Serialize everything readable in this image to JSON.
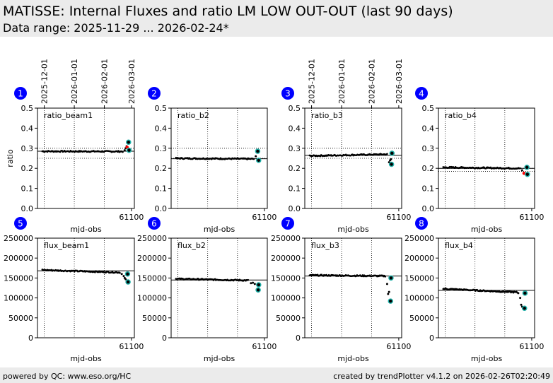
{
  "header": {
    "title": "MATISSE: Internal Fluxes and ratio LM LOW OUT-OUT (last 90 days)",
    "subtitle": "Data range: 2025-11-29 ... 2026-02-24*"
  },
  "footer": {
    "left": "powered by QC: www.eso.org/HC",
    "right": "created by trendPlotter v4.1.2 on 2026-02-26T02:20:49"
  },
  "colors": {
    "badge": "#0000ff",
    "point": "#000000",
    "highlight": "#ff0000",
    "latest_ring": "#20b2aa",
    "header_bg": "#ebebeb"
  },
  "chart_data": [
    {
      "type": "scatter",
      "panel": 1,
      "label": "ratio_beam1",
      "xlabel": "mjd-obs",
      "ylabel": "ratio",
      "xlim": [
        61003,
        61103
      ],
      "ylim": [
        0,
        0.5
      ],
      "xticks": [
        61100
      ],
      "yticks": [
        0.0,
        0.1,
        0.2,
        0.3,
        0.4,
        0.5
      ],
      "ytick_labels": [
        "0.0",
        "0.1",
        "0.2",
        "0.3",
        "0.4",
        "0.5"
      ],
      "date_ticks": [
        {
          "x": 61010,
          "label": "2025-12-01"
        },
        {
          "x": 61041,
          "label": "2026-01-01"
        },
        {
          "x": 61072,
          "label": "2026-02-01"
        },
        {
          "x": 61100,
          "label": "2026-03-01"
        }
      ],
      "vlines": [
        61010,
        61041,
        61072
      ],
      "ref_lines": [
        0.3,
        0.25
      ],
      "mean": 0.285,
      "series_start": 61008,
      "series_end": 61091,
      "base_start": 0.285,
      "base_end": 0.284,
      "points_extra": [
        [
          61093,
          0.29
        ],
        [
          61094,
          0.3
        ],
        [
          61095,
          0.31
        ]
      ],
      "red": [
        [
          61095.5,
          0.305
        ]
      ],
      "latest": [
        [
          61097,
          0.33
        ],
        [
          61097.5,
          0.29
        ]
      ]
    },
    {
      "type": "scatter",
      "panel": 2,
      "label": "ratio_b2",
      "xlabel": "mjd-obs",
      "ylabel": "",
      "xlim": [
        61003,
        61103
      ],
      "ylim": [
        0,
        0.5
      ],
      "xticks": [
        61100
      ],
      "yticks": [
        0.0,
        0.1,
        0.2,
        0.3,
        0.4,
        0.5
      ],
      "ytick_labels": [
        "0.0",
        "0.1",
        "0.2",
        "0.3",
        "0.4",
        "0.5"
      ],
      "vlines": [
        61010,
        61041,
        61072
      ],
      "ref_lines": [
        0.3,
        0.25
      ],
      "mean": 0.248,
      "series_start": 61008,
      "series_end": 61089,
      "base_start": 0.25,
      "base_end": 0.247,
      "points_extra": [
        [
          61091,
          0.26
        ]
      ],
      "red": [],
      "latest": [
        [
          61093,
          0.285
        ],
        [
          61094,
          0.24
        ]
      ]
    },
    {
      "type": "scatter",
      "panel": 3,
      "label": "ratio_b3",
      "xlabel": "mjd-obs",
      "ylabel": "",
      "xlim": [
        61003,
        61103
      ],
      "ylim": [
        0,
        0.5
      ],
      "xticks": [
        61100
      ],
      "yticks": [
        0.0,
        0.1,
        0.2,
        0.3,
        0.4,
        0.5
      ],
      "ytick_labels": [
        "0.0",
        "0.1",
        "0.2",
        "0.3",
        "0.4",
        "0.5"
      ],
      "date_ticks": [
        {
          "x": 61010,
          "label": "2025-12-01"
        },
        {
          "x": 61041,
          "label": "2026-01-01"
        },
        {
          "x": 61072,
          "label": "2026-02-01"
        },
        {
          "x": 61100,
          "label": "2026-03-01"
        }
      ],
      "vlines": [
        61010,
        61041,
        61072
      ],
      "ref_lines": [
        0.3,
        0.25
      ],
      "mean": 0.265,
      "series_start": 61008,
      "series_end": 61088,
      "base_start": 0.262,
      "base_end": 0.27,
      "points_extra": [
        [
          61090,
          0.23
        ],
        [
          61091,
          0.24
        ],
        [
          61092,
          0.245
        ]
      ],
      "red": [],
      "latest": [
        [
          61093,
          0.275
        ],
        [
          61092.5,
          0.22
        ]
      ]
    },
    {
      "type": "scatter",
      "panel": 4,
      "label": "ratio_b4",
      "xlabel": "mjd-obs",
      "ylabel": "",
      "xlim": [
        61003,
        61103
      ],
      "ylim": [
        0,
        0.5
      ],
      "xticks": [
        61100
      ],
      "yticks": [
        0.0,
        0.1,
        0.2,
        0.3,
        0.4,
        0.5
      ],
      "ytick_labels": [
        "0.0",
        "0.1",
        "0.2",
        "0.3",
        "0.4",
        "0.5"
      ],
      "vlines": [
        61010,
        61041,
        61072
      ],
      "ref_lines": [
        0.2,
        0.185
      ],
      "mean": 0.2,
      "series_start": 61008,
      "series_end": 61088,
      "base_start": 0.205,
      "base_end": 0.2,
      "points_extra": [
        [
          61090,
          0.19
        ]
      ],
      "red": [
        [
          61092,
          0.175
        ]
      ],
      "latest": [
        [
          61095,
          0.205
        ],
        [
          61095.5,
          0.17
        ]
      ]
    },
    {
      "type": "scatter",
      "panel": 5,
      "label": "flux_beam1",
      "xlabel": "mjd-obs",
      "ylabel": "",
      "xlim": [
        61003,
        61103
      ],
      "ylim": [
        0,
        250000
      ],
      "xticks": [
        61100
      ],
      "yticks": [
        0,
        50000,
        100000,
        150000,
        200000,
        250000
      ],
      "ytick_labels": [
        "0",
        "50000",
        "100000",
        "150000",
        "200000",
        "250000"
      ],
      "vlines": [
        61010,
        61041,
        61072
      ],
      "ref_lines": [],
      "mean": 168000,
      "series_start": 61008,
      "series_end": 61088,
      "base_start": 170000,
      "base_end": 164000,
      "points_extra": [
        [
          61090,
          160000
        ],
        [
          61092,
          155000
        ],
        [
          61093,
          150000
        ],
        [
          61094,
          147000
        ]
      ],
      "red": [],
      "latest": [
        [
          61096,
          160000
        ],
        [
          61096.5,
          140000
        ]
      ]
    },
    {
      "type": "scatter",
      "panel": 6,
      "label": "flux_b2",
      "xlabel": "mjd-obs",
      "ylabel": "",
      "xlim": [
        61003,
        61103
      ],
      "ylim": [
        0,
        250000
      ],
      "xticks": [
        61100
      ],
      "yticks": [
        0,
        50000,
        100000,
        150000,
        200000,
        250000
      ],
      "ytick_labels": [
        "0",
        "50000",
        "100000",
        "150000",
        "200000",
        "250000"
      ],
      "vlines": [
        61010,
        61041,
        61072
      ],
      "ref_lines": [],
      "mean": 145000,
      "series_start": 61008,
      "series_end": 61083,
      "base_start": 148000,
      "base_end": 144000,
      "points_extra": [
        [
          61086,
          137000
        ],
        [
          61088,
          138000
        ],
        [
          61090,
          135000
        ]
      ],
      "red": [],
      "latest": [
        [
          61094,
          133000
        ],
        [
          61093.5,
          120000
        ]
      ]
    },
    {
      "type": "scatter",
      "panel": 7,
      "label": "flux_b3",
      "xlabel": "mjd-obs",
      "ylabel": "",
      "xlim": [
        61003,
        61103
      ],
      "ylim": [
        0,
        250000
      ],
      "xticks": [
        61100
      ],
      "yticks": [
        0,
        50000,
        100000,
        150000,
        200000,
        250000
      ],
      "ytick_labels": [
        "0",
        "50000",
        "100000",
        "150000",
        "200000",
        "250000"
      ],
      "vlines": [
        61010,
        61041,
        61072
      ],
      "ref_lines": [],
      "mean": 155000,
      "series_start": 61008,
      "series_end": 61086,
      "base_start": 157000,
      "base_end": 155000,
      "points_extra": [
        [
          61088,
          135000
        ],
        [
          61089,
          110000
        ],
        [
          61090,
          115000
        ]
      ],
      "red": [],
      "latest": [
        [
          61092,
          150000
        ],
        [
          61091.5,
          92000
        ]
      ]
    },
    {
      "type": "scatter",
      "panel": 8,
      "label": "flux_b4",
      "xlabel": "mjd-obs",
      "ylabel": "",
      "xlim": [
        61003,
        61103
      ],
      "ylim": [
        0,
        250000
      ],
      "xticks": [
        61100
      ],
      "yticks": [
        0,
        50000,
        100000,
        150000,
        200000,
        250000
      ],
      "ytick_labels": [
        "0",
        "50000",
        "100000",
        "150000",
        "200000",
        "250000"
      ],
      "vlines": [
        61010,
        61041,
        61072
      ],
      "ref_lines": [],
      "mean": 119000,
      "series_start": 61008,
      "series_end": 61085,
      "base_start": 123000,
      "base_end": 114000,
      "points_extra": [
        [
          61086,
          112000
        ],
        [
          61088,
          100000
        ],
        [
          61089,
          83000
        ],
        [
          61090,
          78000
        ]
      ],
      "red": [],
      "latest": [
        [
          61093,
          112000
        ],
        [
          61092.5,
          74000
        ]
      ]
    }
  ]
}
